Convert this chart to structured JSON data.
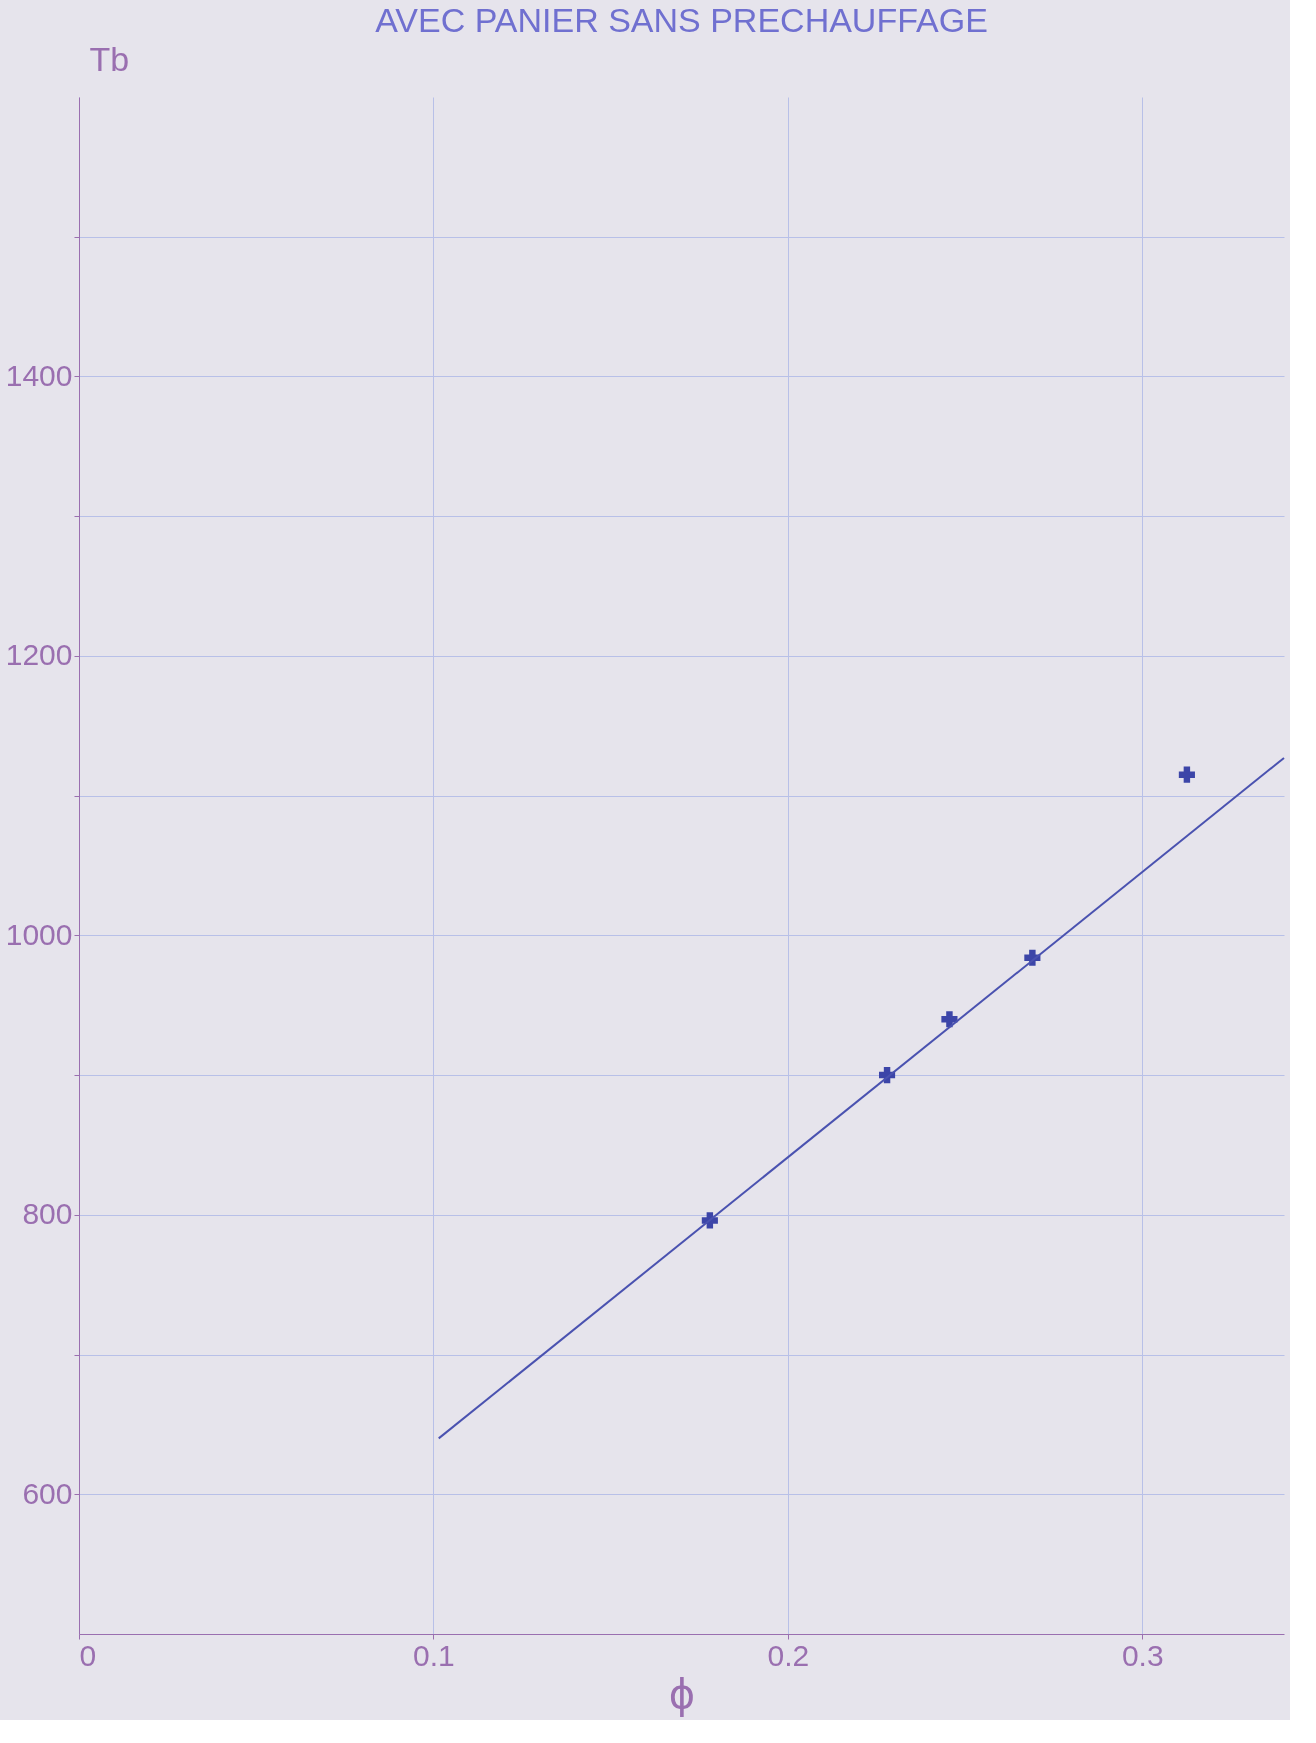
{
  "chart_data": {
    "type": "scatter",
    "title": "AVEC PANIER  SANS PRECHAUFFAGE",
    "xlabel": "ϕ",
    "ylabel": "Tb",
    "xlim": [
      0,
      0.34
    ],
    "ylim": [
      500,
      1600
    ],
    "xticks": [
      0,
      0.1,
      0.2,
      0.3
    ],
    "yticks": [
      600,
      {
        "value": 700,
        "label": null
      },
      800,
      {
        "value": 900,
        "label": null
      },
      1000,
      {
        "value": 1100,
        "label": null
      },
      1200,
      {
        "value": 1300,
        "label": null
      },
      1400,
      {
        "value": 1500,
        "label": null
      }
    ],
    "grid": true,
    "series": [
      {
        "color": "#3c45a8",
        "marker": "cross",
        "x": [
          0.178,
          0.228,
          0.2456,
          0.269,
          0.3126
        ],
        "values": [
          796,
          900,
          940,
          984,
          1115
        ]
      },
      {
        "type": "line",
        "color": "#4a52b0",
        "line_style": "solid",
        "marker": "none",
        "x": [
          0.1015,
          0.34
        ],
        "values": [
          640,
          1127
        ]
      }
    ]
  }
}
